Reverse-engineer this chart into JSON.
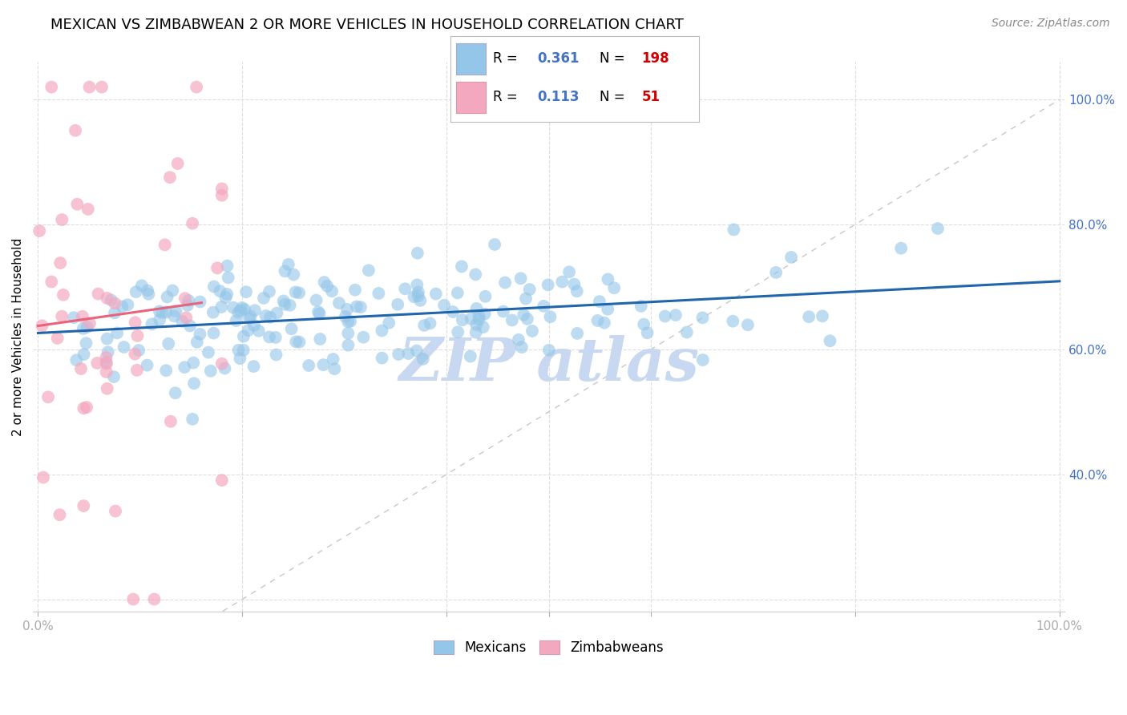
{
  "title": "MEXICAN VS ZIMBABWEAN 2 OR MORE VEHICLES IN HOUSEHOLD CORRELATION CHART",
  "source": "Source: ZipAtlas.com",
  "ylabel": "2 or more Vehicles in Household",
  "legend_mexican": {
    "R": 0.361,
    "N": 198,
    "label": "Mexicans"
  },
  "legend_zimbabwean": {
    "R": 0.113,
    "N": 51,
    "label": "Zimbabweans"
  },
  "color_mexican": "#93C6E8",
  "color_zimbabwean": "#F4A8C0",
  "color_trendline_mexican": "#2166AC",
  "color_trendline_zimbabwean": "#E8647A",
  "color_diagonal": "#C8C8C8",
  "color_grid": "#DDDDDD",
  "color_axis_blue": "#4472C4",
  "watermark_text": "ZIP atlas",
  "watermark_color": "#C8D8F0",
  "title_fontsize": 13,
  "source_fontsize": 10,
  "seed": 42
}
